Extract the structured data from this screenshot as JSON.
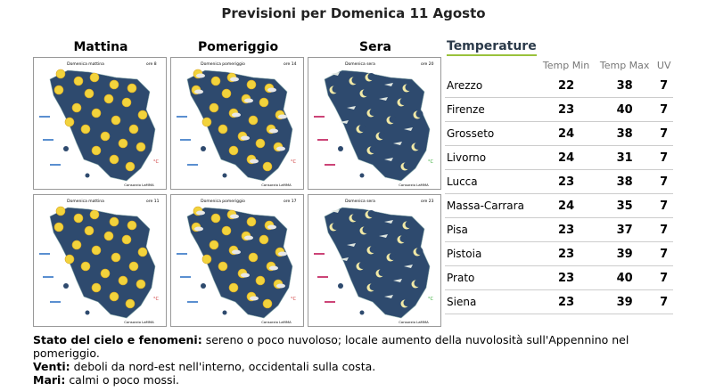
{
  "header": {
    "title": "Previsioni per Domenica 11 Agosto"
  },
  "columns": [
    "Mattina",
    "Pomeriggio",
    "Sera"
  ],
  "maps": [
    {
      "caption": "Domenica mattina",
      "hour": "ore 8",
      "credit": "Consorzio LaMMA",
      "unit": "°C"
    },
    {
      "caption": "Domenica pomeriggio",
      "hour": "ore 14",
      "credit": "Consorzio LaMMA",
      "unit": "°C"
    },
    {
      "caption": "Domenica sera",
      "hour": "ore 20",
      "credit": "Consorzio LaMMA",
      "unit": "°C"
    },
    {
      "caption": "Domenica mattina",
      "hour": "ore 11",
      "credit": "Consorzio LaMMA",
      "unit": "°C"
    },
    {
      "caption": "Domenica pomeriggio",
      "hour": "ore 17",
      "credit": "Consorzio LaMMA",
      "unit": "°C"
    },
    {
      "caption": "Domenica sera",
      "hour": "ore 23",
      "credit": "Consorzio LaMMA",
      "unit": "°C"
    }
  ],
  "table": {
    "title": "Temperature",
    "columns": [
      "Temp Min",
      "Temp Max",
      "UV"
    ],
    "rows": [
      [
        "Arezzo",
        22,
        38,
        7
      ],
      [
        "Firenze",
        23,
        40,
        7
      ],
      [
        "Grosseto",
        24,
        38,
        7
      ],
      [
        "Livorno",
        24,
        31,
        7
      ],
      [
        "Lucca",
        23,
        38,
        7
      ],
      [
        "Massa-Carrara",
        24,
        35,
        7
      ],
      [
        "Pisa",
        23,
        37,
        7
      ],
      [
        "Pistoia",
        23,
        39,
        7
      ],
      [
        "Prato",
        23,
        40,
        7
      ],
      [
        "Siena",
        23,
        39,
        7
      ]
    ]
  },
  "notes": [
    {
      "label": "Stato del cielo e fenomeni:",
      "text": "sereno o poco nuvoloso; locale aumento della nuvolosità sull'Appennino nel pomeriggio."
    },
    {
      "label": "Venti:",
      "text": "deboli da nord-est nell'interno, occidentali sulla costa."
    },
    {
      "label": "Mari:",
      "text": "calmi o poco mossi."
    }
  ]
}
